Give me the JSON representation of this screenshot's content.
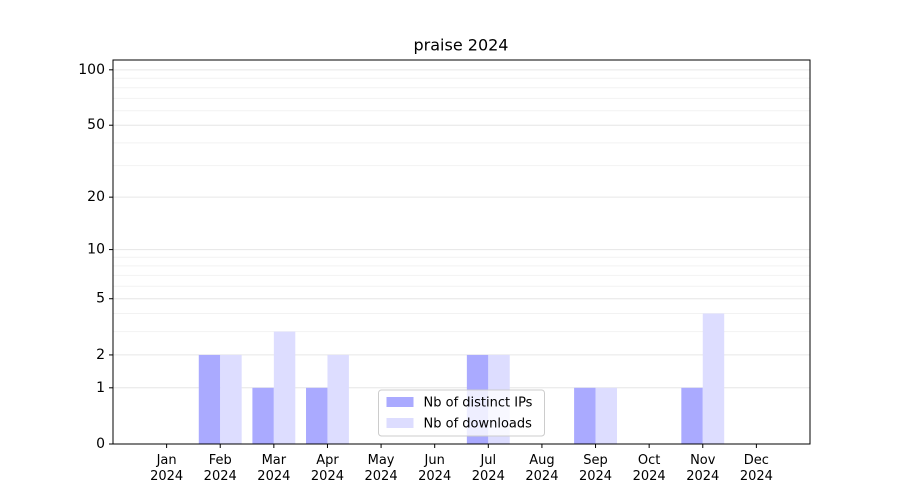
{
  "chart_data": {
    "type": "bar",
    "title": "praise 2024",
    "categories": [
      "Jan\n2024",
      "Feb\n2024",
      "Mar\n2024",
      "Apr\n2024",
      "May\n2024",
      "Jun\n2024",
      "Jul\n2024",
      "Aug\n2024",
      "Sep\n2024",
      "Oct\n2024",
      "Nov\n2024",
      "Dec\n2024"
    ],
    "series": [
      {
        "name": "Nb of distinct IPs",
        "color": "#aaaaff",
        "values": [
          0,
          2,
          1,
          1,
          0,
          0,
          2,
          0,
          1,
          0,
          1,
          0
        ]
      },
      {
        "name": "Nb of downloads",
        "color": "#ddddff",
        "values": [
          0,
          2,
          3,
          2,
          0,
          0,
          2,
          0,
          1,
          0,
          4,
          0
        ]
      }
    ],
    "yscale": "log1p",
    "ylim": [
      0,
      113
    ],
    "yticks": [
      0,
      1,
      2,
      5,
      10,
      20,
      50,
      100
    ],
    "yminorticks": [
      3,
      4,
      6,
      7,
      8,
      9,
      30,
      40,
      60,
      70,
      80,
      90
    ],
    "grid": true,
    "legend": "lower center"
  }
}
